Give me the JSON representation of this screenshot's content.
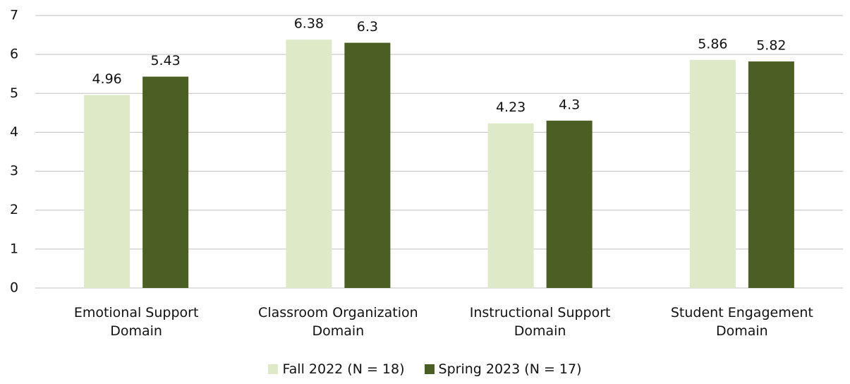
{
  "chart_data": {
    "type": "bar",
    "categories": [
      "Emotional Support Domain",
      "Classroom Organization Domain",
      "Instructional Support Domain",
      "Student Engagement Domain"
    ],
    "series": [
      {
        "name": "Fall 2022 (N = 18)",
        "color": "#dde9c7",
        "values": [
          4.96,
          6.38,
          4.23,
          5.86
        ]
      },
      {
        "name": "Spring 2023 (N = 17)",
        "color": "#4b5e23",
        "values": [
          5.43,
          6.3,
          4.3,
          5.82
        ]
      }
    ],
    "ylim": [
      0,
      7
    ],
    "yticks": [
      0,
      1,
      2,
      3,
      4,
      5,
      6,
      7
    ],
    "grid": true,
    "legend": "bottom"
  }
}
